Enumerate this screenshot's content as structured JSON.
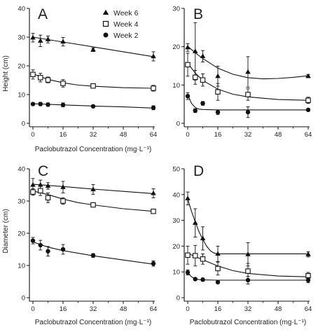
{
  "legend": [
    {
      "label": "Week 6",
      "marker": "triangle"
    },
    {
      "label": "Week 4",
      "marker": "open-square"
    },
    {
      "label": "Week 2",
      "marker": "filled-circle"
    }
  ],
  "y_titles": {
    "top": "Height (cm)",
    "bottom": "Diameter (cm)"
  },
  "chart_data": [
    {
      "type": "scatter",
      "panel": "A",
      "xlabel": "Paclobutrazol Concentration (mg·L⁻¹)",
      "ylabel": "Height (cm)",
      "xlim": [
        0,
        64
      ],
      "ylim": [
        0,
        40
      ],
      "xticks": [
        0,
        16,
        32,
        48,
        64
      ],
      "yticks": [
        0,
        10,
        20,
        30,
        40
      ],
      "series": [
        {
          "name": "Week 6",
          "marker": "triangle",
          "x": [
            0,
            4,
            8,
            16,
            32,
            64
          ],
          "y": [
            29.8,
            28.7,
            29.2,
            28.4,
            25.6,
            23.3
          ],
          "err": [
            1.5,
            2.0,
            1.2,
            1.5,
            0.6,
            1.6
          ],
          "fit": [
            [
              0,
              30.0
            ],
            [
              16,
              28.3
            ],
            [
              32,
              26.6
            ],
            [
              48,
              24.9
            ],
            [
              64,
              23.2
            ]
          ]
        },
        {
          "name": "Week 4",
          "marker": "open-square",
          "x": [
            0,
            4,
            8,
            16,
            32,
            64
          ],
          "y": [
            17.0,
            15.9,
            15.1,
            13.9,
            13.0,
            12.2
          ],
          "err": [
            1.6,
            1.5,
            1.0,
            1.3,
            0.5,
            1.0
          ],
          "fit": [
            [
              0,
              17.3
            ],
            [
              4,
              16.2
            ],
            [
              8,
              15.3
            ],
            [
              16,
              14.1
            ],
            [
              24,
              13.3
            ],
            [
              32,
              12.9
            ],
            [
              48,
              12.4
            ],
            [
              64,
              12.2
            ]
          ]
        },
        {
          "name": "Week 2",
          "marker": "filled-circle",
          "x": [
            0,
            4,
            8,
            16,
            32,
            64
          ],
          "y": [
            6.7,
            6.7,
            6.5,
            6.4,
            5.9,
            5.4
          ],
          "err": [
            0.5,
            0.6,
            0.6,
            0.7,
            0.4,
            0.7
          ],
          "fit": [
            [
              0,
              6.8
            ],
            [
              16,
              6.4
            ],
            [
              32,
              6.0
            ],
            [
              48,
              5.7
            ],
            [
              64,
              5.3
            ]
          ]
        }
      ]
    },
    {
      "type": "scatter",
      "panel": "B",
      "xlabel": "",
      "ylabel": "",
      "xlim": [
        0,
        64
      ],
      "ylim": [
        0,
        30
      ],
      "xticks": [
        0,
        16,
        32,
        48,
        64
      ],
      "yticks": [
        0,
        10,
        20,
        30
      ],
      "series": [
        {
          "name": "Week 6",
          "marker": "triangle",
          "x": [
            0,
            4,
            8,
            16,
            32,
            64
          ],
          "y": [
            19.8,
            18.8,
            17.5,
            12.3,
            13.4,
            12.3
          ],
          "err": [
            1.0,
            7.5,
            1.5,
            2.6,
            4.0,
            0.4
          ],
          "fit": [
            [
              0,
              20.1
            ],
            [
              4,
              18.4
            ],
            [
              8,
              16.9
            ],
            [
              16,
              14.4
            ],
            [
              24,
              12.8
            ],
            [
              32,
              11.9
            ],
            [
              40,
              11.6
            ],
            [
              48,
              11.7
            ],
            [
              56,
              12.0
            ],
            [
              64,
              12.4
            ]
          ]
        },
        {
          "name": "Week 4",
          "marker": "open-square",
          "x": [
            0,
            4,
            8,
            16,
            32,
            64
          ],
          "y": [
            15.3,
            12.0,
            11.3,
            8.2,
            7.5,
            6.0
          ],
          "err": [
            3.0,
            1.8,
            1.6,
            2.2,
            1.5,
            0.8
          ],
          "fit": [
            [
              0,
              15.7
            ],
            [
              4,
              13.1
            ],
            [
              8,
              11.2
            ],
            [
              16,
              8.9
            ],
            [
              24,
              7.6
            ],
            [
              32,
              6.9
            ],
            [
              48,
              6.2
            ],
            [
              64,
              6.0
            ]
          ]
        },
        {
          "name": "Week 2",
          "marker": "filled-circle",
          "x": [
            0,
            4,
            8,
            16,
            32,
            64
          ],
          "y": [
            7.1,
            3.3,
            5.2,
            2.9,
            2.9,
            3.5
          ],
          "err": [
            0.9,
            0.5,
            0.5,
            0.6,
            1.4,
            0.3
          ],
          "fit": [
            [
              0,
              7.5
            ],
            [
              2,
              5.2
            ],
            [
              4,
              4.1
            ],
            [
              6,
              3.7
            ],
            [
              8,
              3.6
            ],
            [
              16,
              3.5
            ],
            [
              32,
              3.5
            ],
            [
              64,
              3.5
            ]
          ]
        }
      ]
    },
    {
      "type": "scatter",
      "panel": "C",
      "xlabel": "Paclobutrazol Concentration (mg·L⁻¹)",
      "ylabel": "Diameter (cm)",
      "xlim": [
        0,
        64
      ],
      "ylim": [
        0,
        40
      ],
      "xticks": [
        0,
        16,
        32,
        48,
        64
      ],
      "yticks": [
        0,
        10,
        20,
        30,
        40
      ],
      "series": [
        {
          "name": "Week 6",
          "marker": "triangle",
          "x": [
            0,
            4,
            8,
            16,
            32,
            64
          ],
          "y": [
            35.0,
            35.0,
            34.7,
            34.3,
            33.6,
            32.4
          ],
          "err": [
            2.0,
            1.5,
            1.0,
            1.8,
            1.5,
            1.4
          ],
          "fit": [
            [
              0,
              35.2
            ],
            [
              16,
              34.5
            ],
            [
              32,
              33.7
            ],
            [
              48,
              33.0
            ],
            [
              64,
              32.3
            ]
          ]
        },
        {
          "name": "Week 4",
          "marker": "open-square",
          "x": [
            0,
            4,
            8,
            16,
            32,
            64
          ],
          "y": [
            32.8,
            33.2,
            31.0,
            30.0,
            28.8,
            26.8
          ],
          "err": [
            1.0,
            1.5,
            1.5,
            1.0,
            0.5,
            0.6
          ],
          "fit": [
            [
              0,
              33.1
            ],
            [
              8,
              32.0
            ],
            [
              16,
              30.6
            ],
            [
              24,
              29.5
            ],
            [
              32,
              28.8
            ],
            [
              48,
              27.6
            ],
            [
              64,
              26.8
            ]
          ]
        },
        {
          "name": "Week 2",
          "marker": "filled-circle",
          "x": [
            0,
            4,
            8,
            16,
            32,
            64
          ],
          "y": [
            17.7,
            16.3,
            14.4,
            15.0,
            13.1,
            10.6
          ],
          "err": [
            1.0,
            1.5,
            1.5,
            1.5,
            0.6,
            0.8
          ],
          "fit": [
            [
              0,
              17.3
            ],
            [
              8,
              15.7
            ],
            [
              16,
              14.6
            ],
            [
              32,
              13.0
            ],
            [
              48,
              11.7
            ],
            [
              64,
              10.4
            ]
          ]
        }
      ]
    },
    {
      "type": "scatter",
      "panel": "D",
      "xlabel": "Paclobutrazol Concentration (mg·L⁻¹)",
      "ylabel": "",
      "xlim": [
        0,
        64
      ],
      "ylim": [
        0,
        50
      ],
      "xticks": [
        0,
        16,
        32,
        48,
        64
      ],
      "yticks": [
        0,
        10,
        20,
        30,
        40,
        50
      ],
      "series": [
        {
          "name": "Week 6",
          "marker": "triangle",
          "x": [
            0,
            4,
            8,
            16,
            32,
            64
          ],
          "y": [
            38.5,
            29.0,
            23.0,
            17.0,
            16.8,
            16.8
          ],
          "err": [
            2.5,
            5.5,
            4.5,
            3.0,
            4.5,
            1.0
          ],
          "fit": [
            [
              0,
              38.3
            ],
            [
              2,
              33.5
            ],
            [
              4,
              29.4
            ],
            [
              6,
              25.6
            ],
            [
              8,
              22.6
            ],
            [
              10,
              20.0
            ],
            [
              12,
              18.2
            ],
            [
              14,
              17.3
            ],
            [
              16,
              17.0
            ],
            [
              32,
              17.0
            ],
            [
              64,
              17.0
            ]
          ]
        },
        {
          "name": "Week 4",
          "marker": "open-square",
          "x": [
            0,
            4,
            8,
            16,
            32,
            64
          ],
          "y": [
            16.5,
            16.3,
            15.0,
            11.3,
            10.3,
            8.5
          ],
          "err": [
            3.5,
            4.0,
            2.0,
            2.5,
            3.0,
            1.3
          ],
          "fit": [
            [
              0,
              17.2
            ],
            [
              4,
              16.0
            ],
            [
              8,
              14.7
            ],
            [
              16,
              12.3
            ],
            [
              24,
              10.5
            ],
            [
              32,
              9.4
            ],
            [
              48,
              8.4
            ],
            [
              64,
              8.1
            ]
          ]
        },
        {
          "name": "Week 2",
          "marker": "filled-circle",
          "x": [
            0,
            4,
            8,
            16,
            32,
            64
          ],
          "y": [
            9.8,
            7.2,
            7.0,
            6.0,
            6.8,
            6.8
          ],
          "err": [
            1.0,
            0.5,
            0.6,
            0.5,
            1.5,
            1.0
          ],
          "fit": [
            [
              0,
              9.8
            ],
            [
              2,
              8.1
            ],
            [
              4,
              7.3
            ],
            [
              6,
              7.0
            ],
            [
              8,
              6.9
            ],
            [
              16,
              6.8
            ],
            [
              32,
              6.8
            ],
            [
              64,
              6.8
            ]
          ]
        }
      ]
    }
  ]
}
